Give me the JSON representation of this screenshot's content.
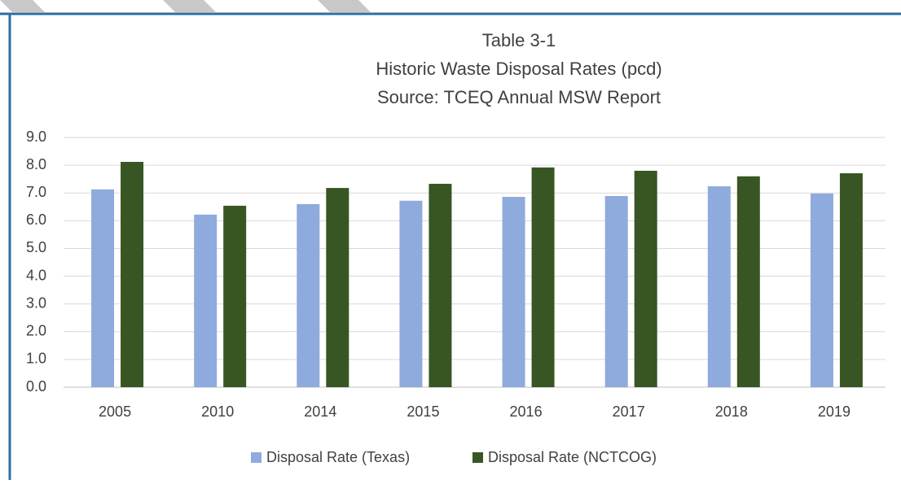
{
  "chart_data": {
    "type": "bar",
    "title_lines": [
      "Table 3-1",
      "Historic Waste Disposal Rates (pcd)",
      "Source:  TCEQ Annual MSW Report"
    ],
    "categories": [
      "2005",
      "2010",
      "2014",
      "2015",
      "2016",
      "2017",
      "2018",
      "2019"
    ],
    "series": [
      {
        "name": "Disposal Rate (Texas)",
        "color": "#8faadc",
        "values": [
          7.13,
          6.22,
          6.6,
          6.72,
          6.86,
          6.89,
          7.24,
          6.98
        ]
      },
      {
        "name": "Disposal Rate (NCTCOG)",
        "color": "#375623",
        "values": [
          8.12,
          6.54,
          7.18,
          7.33,
          7.92,
          7.8,
          7.6,
          7.71
        ]
      }
    ],
    "ylim": [
      0,
      9
    ],
    "yticks": [
      {
        "value": 0,
        "label": "0.0"
      },
      {
        "value": 1,
        "label": "1.0"
      },
      {
        "value": 2,
        "label": "2.0"
      },
      {
        "value": 3,
        "label": "3.0"
      },
      {
        "value": 4,
        "label": "4.0"
      },
      {
        "value": 5,
        "label": "5.0"
      },
      {
        "value": 6,
        "label": "6.0"
      },
      {
        "value": 7,
        "label": "7.0"
      },
      {
        "value": 8,
        "label": "8.0"
      },
      {
        "value": 9,
        "label": "9.0"
      }
    ],
    "grid": true,
    "legend": "bottom"
  }
}
